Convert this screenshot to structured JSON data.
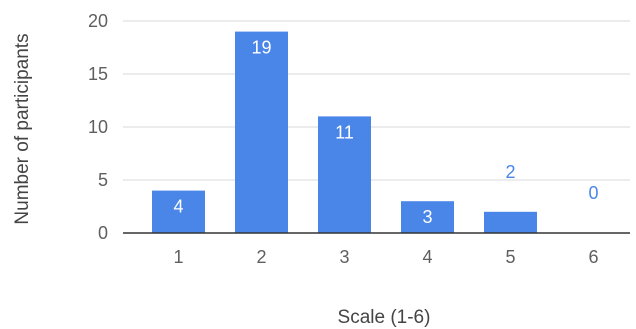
{
  "chart_data": {
    "type": "bar",
    "categories": [
      "1",
      "2",
      "3",
      "4",
      "5",
      "6"
    ],
    "values": [
      4,
      19,
      11,
      3,
      2,
      0
    ],
    "title": "",
    "xlabel": "Scale (1-6)",
    "ylabel": "Number of participants",
    "ylim": [
      0,
      20
    ],
    "yticks": [
      "0",
      "5",
      "10",
      "15",
      "20"
    ],
    "data_labels": [
      "4",
      "19",
      "11",
      "3",
      "2",
      "0"
    ],
    "grid": true,
    "legend": "none",
    "colors": {
      "bar": "#4a86e8",
      "label_inside": "#ffffff",
      "label_outside": "#4a86e8",
      "grid": "#d9d9d9",
      "axis": "#333333"
    }
  }
}
